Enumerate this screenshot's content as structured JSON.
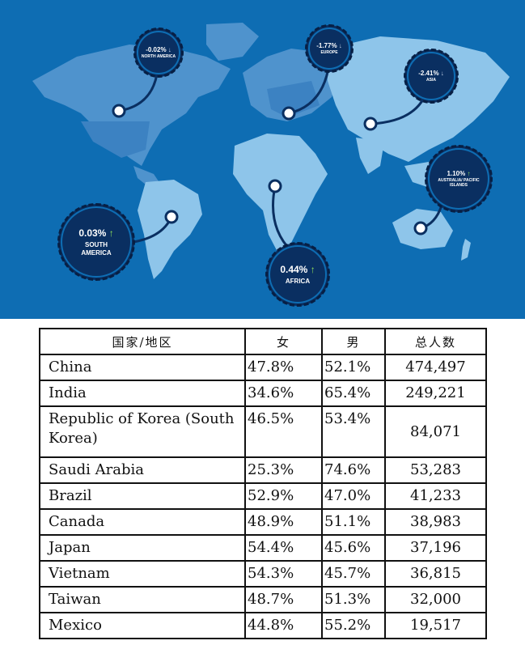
{
  "map": {
    "colors": {
      "ocean": "#0e6db3",
      "land": "#8ec5ea",
      "land_dark": "#4f93cd",
      "badge": "#0a2f61",
      "up_arrow": "#8fe05b"
    },
    "regions": [
      {
        "pct": "-0.02%",
        "arrow": "↓",
        "name": "North America"
      },
      {
        "pct": "-1.77%",
        "arrow": "↓",
        "name": "Europe"
      },
      {
        "pct": "-2.41%",
        "arrow": "↓",
        "name": "Asia"
      },
      {
        "pct": "1.10%",
        "arrow": "↑",
        "name": "Australia/ Pacific Islands"
      },
      {
        "pct": "0.03%",
        "arrow": "↑",
        "name": "South America"
      },
      {
        "pct": "0.44%",
        "arrow": "↑",
        "name": "Africa"
      }
    ]
  },
  "table": {
    "headers": [
      "国家/地区",
      "女",
      "男",
      "总人数"
    ],
    "rows": [
      {
        "country": "China",
        "female": "47.8%",
        "male": "52.1%",
        "total": "474,497"
      },
      {
        "country": "India",
        "female": "34.6%",
        "male": "65.4%",
        "total": "249,221"
      },
      {
        "country": "Republic of Korea (South Korea)",
        "female": "46.5%",
        "male": "53.4%",
        "total": "84,071"
      },
      {
        "country": "Saudi Arabia",
        "female": "25.3%",
        "male": "74.6%",
        "total": "53,283"
      },
      {
        "country": "Brazil",
        "female": "52.9%",
        "male": "47.0%",
        "total": "41,233"
      },
      {
        "country": "Canada",
        "female": "48.9%",
        "male": "51.1%",
        "total": "38,983"
      },
      {
        "country": "Japan",
        "female": "54.4%",
        "male": "45.6%",
        "total": "37,196"
      },
      {
        "country": "Vietnam",
        "female": "54.3%",
        "male": "45.7%",
        "total": "36,815"
      },
      {
        "country": "Taiwan",
        "female": "48.7%",
        "male": "51.3%",
        "total": "32,000"
      },
      {
        "country": "Mexico",
        "female": "44.8%",
        "male": "55.2%",
        "total": "19,517"
      }
    ]
  }
}
